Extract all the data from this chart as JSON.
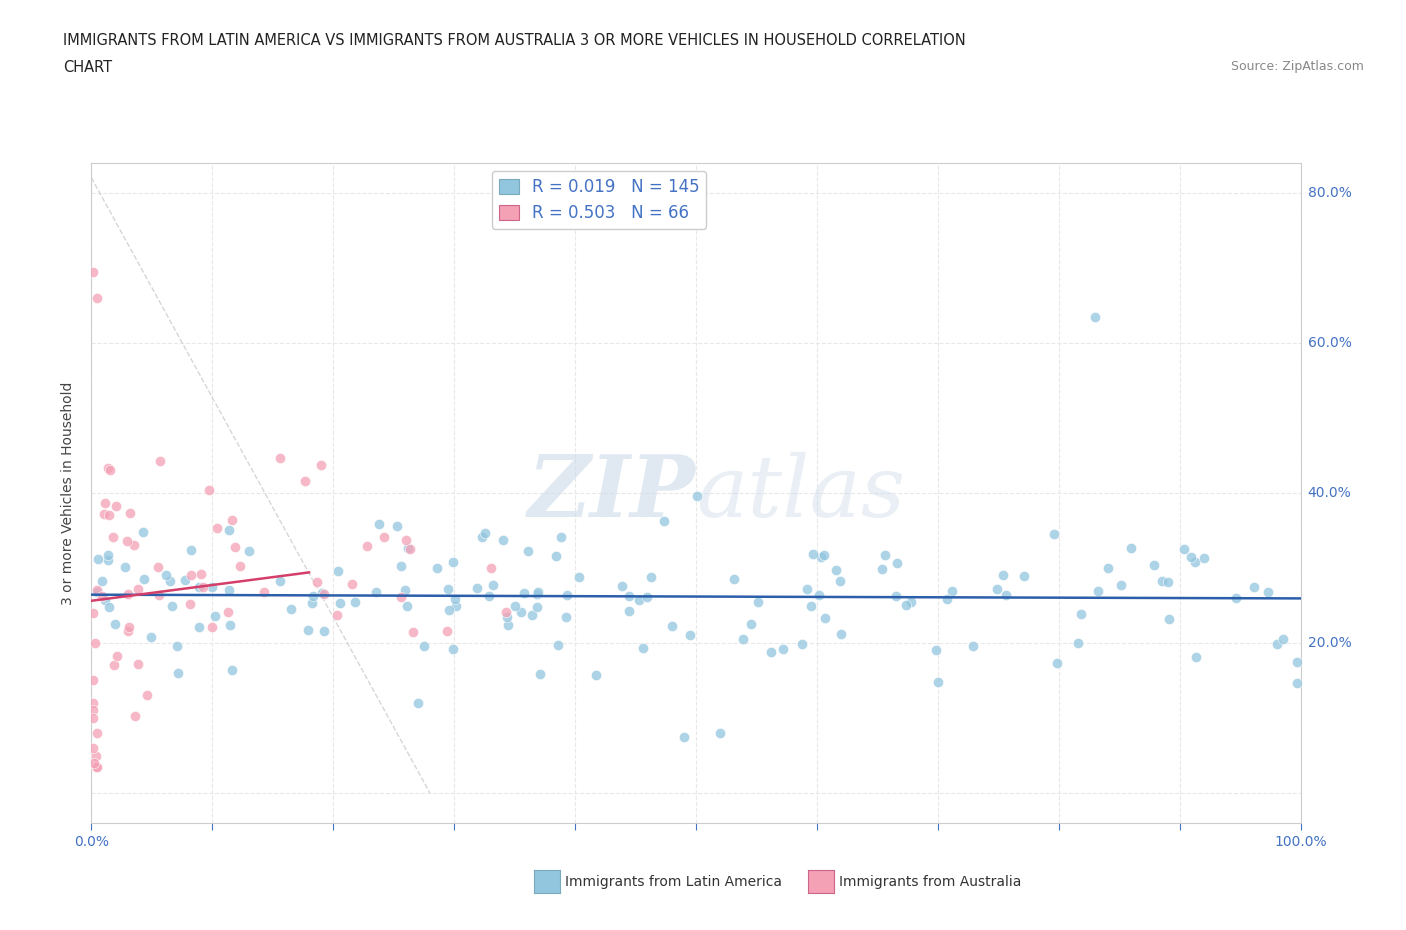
{
  "title_line1": "IMMIGRANTS FROM LATIN AMERICA VS IMMIGRANTS FROM AUSTRALIA 3 OR MORE VEHICLES IN HOUSEHOLD CORRELATION",
  "title_line2": "CHART",
  "source_text": "Source: ZipAtlas.com",
  "ylabel": "3 or more Vehicles in Household",
  "xlim": [
    0.0,
    1.0
  ],
  "ylim": [
    -0.04,
    0.84
  ],
  "color_blue": "#92c5de",
  "color_pink": "#f4a0b5",
  "line_blue": "#2b5faa",
  "line_pink": "#d43f6a",
  "legend_R1": "0.019",
  "legend_N1": "145",
  "legend_R2": "0.503",
  "legend_N2": "66",
  "watermark_zip": "ZIP",
  "watermark_atlas": "atlas",
  "background_color": "#ffffff",
  "grid_color": "#e8e8e8",
  "tick_color": "#4472c4",
  "title_color": "#222222",
  "source_color": "#888888"
}
